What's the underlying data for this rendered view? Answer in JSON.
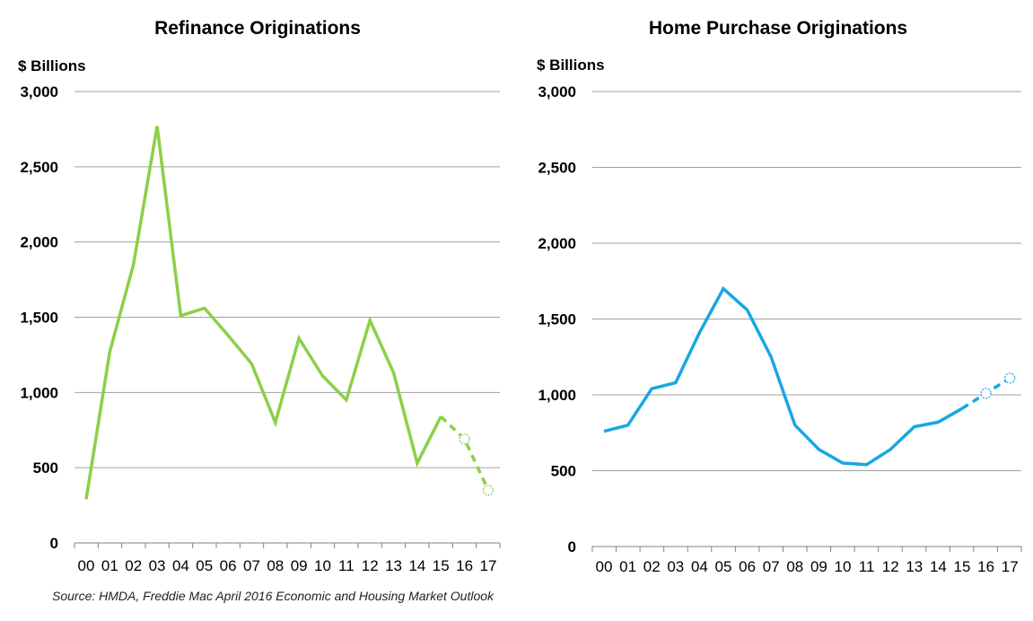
{
  "source_note": "Source: HMDA, Freddie Mac April 2016 Economic and Housing Market Outlook",
  "chart_data": [
    {
      "type": "line",
      "title": "Refinance Originations",
      "ylabel": "$ Billions",
      "ylim": [
        0,
        3000
      ],
      "y_ticks": [
        "0",
        "500",
        "1,000",
        "1,500",
        "2,000",
        "2,500",
        "3,000"
      ],
      "categories": [
        "00",
        "01",
        "02",
        "03",
        "04",
        "05",
        "06",
        "07",
        "08",
        "09",
        "10",
        "11",
        "12",
        "13",
        "14",
        "15",
        "16",
        "17"
      ],
      "grid": true,
      "color": "#8ccf48",
      "series": [
        {
          "values": [
            290,
            1270,
            1850,
            2770,
            1510,
            1560,
            1380,
            1190,
            800,
            1360,
            1110,
            950,
            1480,
            1130,
            530,
            840,
            690,
            350
          ],
          "forecast_from_index": 15,
          "forecast_markers": [
            16,
            17
          ]
        }
      ]
    },
    {
      "type": "line",
      "title": "Home Purchase Originations",
      "ylabel": "$ Billions",
      "ylim": [
        0,
        3000
      ],
      "y_ticks": [
        "0",
        "500",
        "1,000",
        "1,500",
        "2,000",
        "2,500",
        "3,000"
      ],
      "categories": [
        "00",
        "01",
        "02",
        "03",
        "04",
        "05",
        "06",
        "07",
        "08",
        "09",
        "10",
        "11",
        "12",
        "13",
        "14",
        "15",
        "16",
        "17"
      ],
      "grid": true,
      "color": "#1aa6e3",
      "series": [
        {
          "values": [
            760,
            800,
            1040,
            1080,
            1410,
            1700,
            1560,
            1250,
            800,
            640,
            550,
            540,
            640,
            790,
            820,
            910,
            1010,
            1110
          ],
          "forecast_from_index": 15,
          "forecast_markers": [
            16,
            17
          ]
        }
      ]
    }
  ]
}
